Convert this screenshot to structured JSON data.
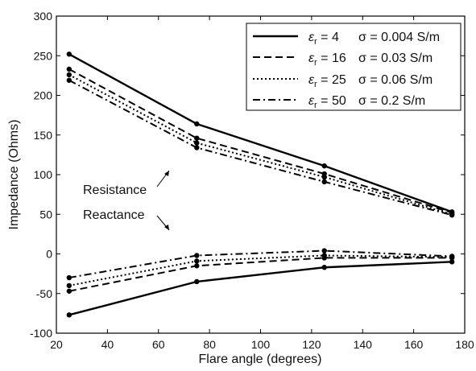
{
  "chart_data": {
    "type": "line",
    "xlabel": "Flare angle (degrees)",
    "ylabel": "Impedance (Ohms)",
    "xlim": [
      20,
      180
    ],
    "ylim": [
      -100,
      300
    ],
    "xticks": [
      20,
      40,
      60,
      80,
      100,
      120,
      140,
      160,
      180
    ],
    "yticks": [
      -100,
      -50,
      0,
      50,
      100,
      150,
      200,
      250,
      300
    ],
    "x": [
      25,
      75,
      125,
      175
    ],
    "grid": false,
    "legend_position": "top-right",
    "annotations": [
      {
        "text": "Resistance",
        "target": "resistance curves"
      },
      {
        "text": "Reactance",
        "target": "reactance curves"
      }
    ],
    "series": [
      {
        "name": "εr = 4   σ = 0.004 S/m",
        "eps": "4",
        "sigma": "σ = 0.004 S/m",
        "line_style": "solid",
        "quantity": "Resistance",
        "values": [
          252,
          164,
          111,
          53
        ]
      },
      {
        "name": "εr = 16  σ = 0.03 S/m",
        "eps": "16",
        "sigma": "σ = 0.03 S/m",
        "line_style": "dashed",
        "quantity": "Resistance",
        "values": [
          233,
          146,
          101,
          52
        ]
      },
      {
        "name": "εr = 25  σ = 0.06 S/m",
        "eps": "25",
        "sigma": "σ = 0.06 S/m",
        "line_style": "dotted",
        "quantity": "Resistance",
        "values": [
          226,
          140,
          97,
          50
        ]
      },
      {
        "name": "εr = 50  σ = 0.2 S/m",
        "eps": "50",
        "sigma": "σ = 0.2 S/m",
        "line_style": "dashdot",
        "quantity": "Resistance",
        "values": [
          219,
          134,
          91,
          49
        ]
      },
      {
        "name": "εr = 4   σ = 0.004 S/m",
        "line_style": "solid",
        "quantity": "Reactance",
        "values": [
          -77,
          -35,
          -17,
          -10
        ]
      },
      {
        "name": "εr = 16  σ = 0.03 S/m",
        "line_style": "dashed",
        "quantity": "Reactance",
        "values": [
          -47,
          -15,
          -5,
          -5
        ]
      },
      {
        "name": "εr = 25  σ = 0.06 S/m",
        "line_style": "dotted",
        "quantity": "Reactance",
        "values": [
          -40,
          -9,
          -2,
          -4
        ]
      },
      {
        "name": "εr = 50  σ = 0.2 S/m",
        "line_style": "dashdot",
        "quantity": "Reactance",
        "values": [
          -30,
          -2,
          4,
          -3
        ]
      }
    ],
    "colors": {
      "line": "#000000",
      "background": "#ffffff"
    }
  }
}
